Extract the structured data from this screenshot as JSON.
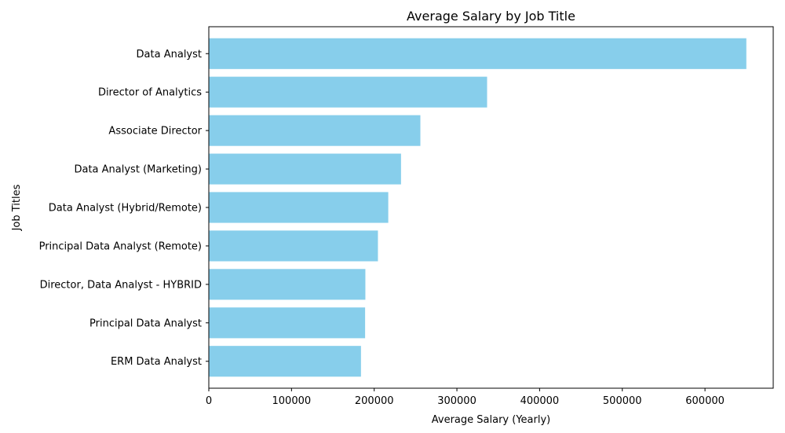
{
  "chart_data": {
    "type": "bar",
    "orientation": "horizontal",
    "title": "Average Salary by Job Title",
    "xlabel": "Average Salary (Yearly)",
    "ylabel": "Job Titles",
    "categories": [
      "Data Analyst",
      "Director of Analytics",
      "Associate Director",
      "Data Analyst (Marketing)",
      "Data Analyst (Hybrid/Remote)",
      "Principal Data Analyst (Remote)",
      "Director, Data Analyst - HYBRID",
      "Principal Data Analyst",
      "ERM Data Analyst"
    ],
    "values": [
      650000,
      336500,
      255830,
      232425,
      217000,
      204500,
      189310,
      189000,
      184000
    ],
    "xlim": [
      0,
      682500
    ],
    "xticks": [
      "0",
      "100000",
      "200000",
      "300000",
      "400000",
      "500000",
      "600000"
    ],
    "xtick_values": [
      0,
      100000,
      200000,
      300000,
      400000,
      500000,
      600000
    ],
    "bar_color": "#87ceeb",
    "grid": false,
    "legend": "none"
  }
}
